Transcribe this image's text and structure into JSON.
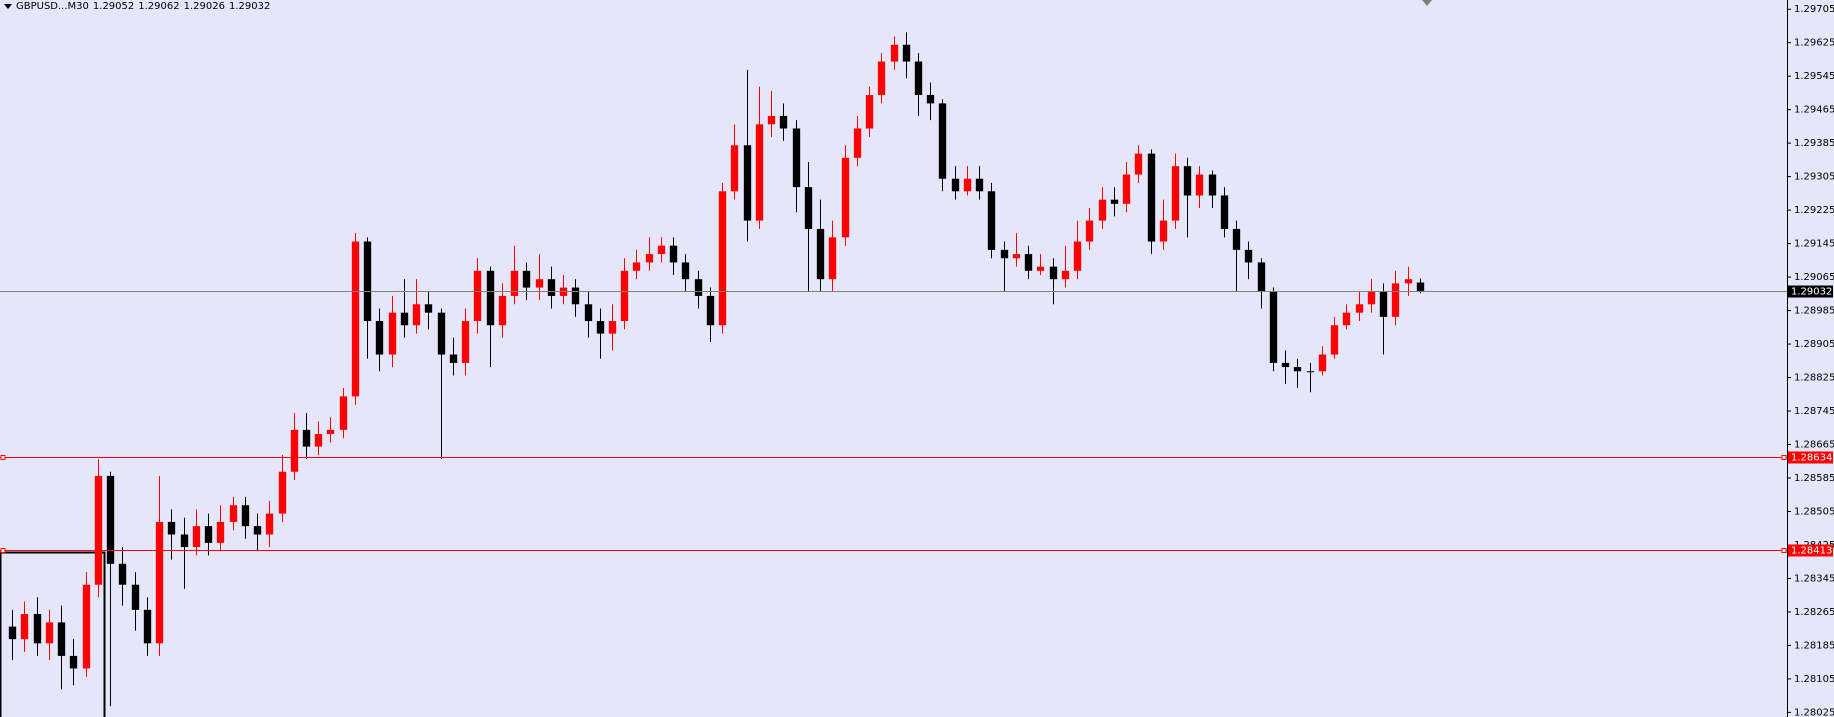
{
  "chart_data": {
    "type": "candlestick",
    "title": "GBPUSD...M30",
    "open": [
      1.2823,
      1.282,
      1.2826,
      1.2819,
      1.2824,
      1.2816,
      1.2813,
      1.2833,
      1.2859,
      1.2838,
      1.2833,
      1.2827,
      1.2819,
      1.2848,
      1.2845,
      1.2842,
      1.2847,
      1.2843,
      1.2848,
      1.2852,
      1.2847,
      1.2845,
      1.285,
      1.286,
      1.287,
      1.2866,
      1.2869,
      1.287,
      1.2878,
      1.2915,
      1.2896,
      1.2888,
      1.2898,
      1.2895,
      1.29,
      1.2898,
      1.2888,
      1.2886,
      1.2896,
      1.2908,
      1.2895,
      1.2902,
      1.2908,
      1.2904,
      1.2906,
      1.2902,
      1.2904,
      1.29,
      1.2896,
      1.2893,
      1.2896,
      1.2908,
      1.291,
      1.2912,
      1.2914,
      1.291,
      1.2906,
      1.2902,
      1.2895,
      1.2927,
      1.2938,
      1.292,
      1.2943,
      1.2945,
      1.2942,
      1.2928,
      1.2918,
      1.2906,
      1.2916,
      1.2935,
      1.2942,
      1.295,
      1.2958,
      1.2962,
      1.2958,
      1.295,
      1.2948,
      1.293,
      1.2927,
      1.293,
      1.2927,
      1.2913,
      1.2911,
      1.2912,
      1.2908,
      1.2909,
      1.2906,
      1.2908,
      1.2915,
      1.292,
      1.2925,
      1.2924,
      1.2931,
      1.2936,
      1.2915,
      1.292,
      1.2933,
      1.2926,
      1.2931,
      1.2926,
      1.2918,
      1.2913,
      1.291,
      1.2903,
      1.2886,
      1.2885,
      1.2884,
      1.2884,
      1.2888,
      1.2895,
      1.2898,
      1.29,
      1.2903,
      1.2897,
      1.2905,
      1.29052
    ],
    "high": [
      1.2827,
      1.2829,
      1.283,
      1.2827,
      1.2828,
      1.282,
      1.2836,
      1.2863,
      1.286,
      1.2842,
      1.2836,
      1.283,
      1.2859,
      1.2851,
      1.2849,
      1.2851,
      1.285,
      1.2852,
      1.2854,
      1.2854,
      1.285,
      1.2853,
      1.2864,
      1.2874,
      1.2874,
      1.2872,
      1.2873,
      1.288,
      1.2917,
      1.2916,
      1.2899,
      1.2902,
      1.2906,
      1.2906,
      1.2903,
      1.2899,
      1.2892,
      1.2899,
      1.2911,
      1.2909,
      1.2905,
      1.2914,
      1.291,
      1.2912,
      1.2909,
      1.2907,
      1.2906,
      1.2903,
      1.2899,
      1.29,
      1.2911,
      1.2913,
      1.2916,
      1.2916,
      1.2916,
      1.2912,
      1.2908,
      1.2904,
      1.2929,
      1.2943,
      1.2956,
      1.2952,
      1.2951,
      1.2948,
      1.2944,
      1.2934,
      1.2925,
      1.292,
      1.2938,
      1.2945,
      1.2952,
      1.296,
      1.2964,
      1.2965,
      1.296,
      1.2953,
      1.2949,
      1.2933,
      1.2933,
      1.2933,
      1.2929,
      1.2915,
      1.2917,
      1.2914,
      1.2912,
      1.2911,
      1.2914,
      1.292,
      1.2923,
      1.2928,
      1.2928,
      1.2934,
      1.2938,
      1.2937,
      1.2925,
      1.2936,
      1.2935,
      1.2933,
      1.2932,
      1.2928,
      1.292,
      1.2915,
      1.2911,
      1.2904,
      1.2889,
      1.2887,
      1.2886,
      1.289,
      1.2897,
      1.29,
      1.2903,
      1.2906,
      1.2905,
      1.2908,
      1.2909,
      1.29062
    ],
    "low": [
      1.2815,
      1.2817,
      1.2816,
      1.2815,
      1.2808,
      1.2809,
      1.2811,
      1.283,
      1.2804,
      1.2828,
      1.2822,
      1.2816,
      1.2816,
      1.2839,
      1.2832,
      1.284,
      1.284,
      1.2841,
      1.2846,
      1.2844,
      1.2841,
      1.2842,
      1.2848,
      1.2858,
      1.2863,
      1.2864,
      1.2867,
      1.2868,
      1.2876,
      1.2887,
      1.2884,
      1.2885,
      1.2892,
      1.2893,
      1.2894,
      1.2863,
      1.2883,
      1.2883,
      1.2893,
      1.2885,
      1.2892,
      1.29,
      1.2901,
      1.2901,
      1.2899,
      1.29,
      1.2897,
      1.2892,
      1.2887,
      1.2889,
      1.2894,
      1.2906,
      1.2908,
      1.291,
      1.2907,
      1.2903,
      1.2899,
      1.2891,
      1.2893,
      1.2925,
      1.2915,
      1.2918,
      1.294,
      1.2939,
      1.2922,
      1.2903,
      1.2903,
      1.2903,
      1.2914,
      1.2933,
      1.294,
      1.2948,
      1.2956,
      1.2954,
      1.2945,
      1.2944,
      1.2927,
      1.2925,
      1.2926,
      1.2925,
      1.2911,
      1.2903,
      1.2909,
      1.2906,
      1.2907,
      1.29,
      1.2904,
      1.2906,
      1.2913,
      1.2918,
      1.2921,
      1.2922,
      1.2929,
      1.2912,
      1.2913,
      1.2918,
      1.2916,
      1.2923,
      1.2923,
      1.2916,
      1.2903,
      1.2906,
      1.2899,
      1.2884,
      1.2881,
      1.288,
      1.2879,
      1.2883,
      1.2887,
      1.2894,
      1.2896,
      1.2898,
      1.2888,
      1.2895,
      1.2902,
      1.29026
    ],
    "close": [
      1.282,
      1.2826,
      1.2819,
      1.2824,
      1.2816,
      1.2813,
      1.2833,
      1.2859,
      1.2838,
      1.2833,
      1.2827,
      1.2819,
      1.2848,
      1.2845,
      1.2842,
      1.2847,
      1.2843,
      1.2848,
      1.2852,
      1.2847,
      1.2845,
      1.285,
      1.286,
      1.287,
      1.2866,
      1.2869,
      1.287,
      1.2878,
      1.2915,
      1.2896,
      1.2888,
      1.2898,
      1.2895,
      1.29,
      1.2898,
      1.2888,
      1.2886,
      1.2896,
      1.2908,
      1.2895,
      1.2902,
      1.2908,
      1.2904,
      1.2906,
      1.2902,
      1.2904,
      1.29,
      1.2896,
      1.2893,
      1.2896,
      1.2908,
      1.291,
      1.2912,
      1.2914,
      1.291,
      1.2906,
      1.2902,
      1.2895,
      1.2927,
      1.2938,
      1.292,
      1.2943,
      1.2945,
      1.2942,
      1.2928,
      1.2918,
      1.2906,
      1.2916,
      1.2935,
      1.2942,
      1.295,
      1.2958,
      1.2962,
      1.2958,
      1.295,
      1.2948,
      1.293,
      1.2927,
      1.293,
      1.2927,
      1.2913,
      1.2911,
      1.2912,
      1.2908,
      1.2909,
      1.2906,
      1.2908,
      1.2915,
      1.292,
      1.2925,
      1.2924,
      1.2931,
      1.2936,
      1.2915,
      1.292,
      1.2933,
      1.2926,
      1.2931,
      1.2926,
      1.2918,
      1.2913,
      1.291,
      1.2903,
      1.2886,
      1.2885,
      1.2884,
      1.2884,
      1.2888,
      1.2895,
      1.2898,
      1.29,
      1.2903,
      1.2897,
      1.2905,
      1.2906,
      1.29032
    ],
    "up_color": "#ff0000",
    "down_color": "#000000",
    "xlim": [
      -1,
      145
    ],
    "ylim": [
      1.28014,
      1.29727
    ],
    "yticks": [
      1.29705,
      1.29625,
      1.29545,
      1.29465,
      1.29385,
      1.29305,
      1.29225,
      1.29145,
      1.29065,
      1.28985,
      1.28905,
      1.28825,
      1.28745,
      1.28665,
      1.28585,
      1.28505,
      1.28425,
      1.28345,
      1.28265,
      1.28185,
      1.28105,
      1.28025
    ],
    "levels": [
      {
        "value": 1.29032,
        "color": "#808080",
        "label_bg": "#000000"
      },
      {
        "value": 1.28634,
        "color": "#ff0000",
        "label_bg": "#ff0000"
      },
      {
        "value": 1.28413,
        "color": "#ff0000",
        "label_bg": "#ff0000"
      }
    ]
  }
}
